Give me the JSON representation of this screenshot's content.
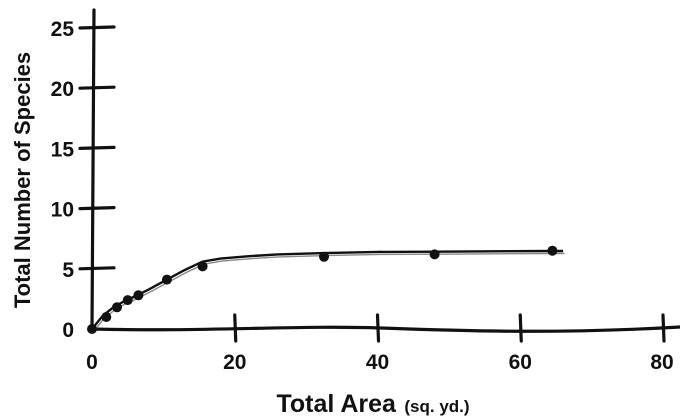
{
  "chart_data": {
    "type": "line",
    "title": "",
    "xlabel": "Total Area",
    "xlabel_unit": "(sq. yd.)",
    "ylabel": "Total Number of Species",
    "xlim": [
      0,
      80
    ],
    "ylim": [
      0,
      25
    ],
    "x_ticks": [
      0,
      20,
      40,
      60,
      80
    ],
    "y_ticks": [
      0,
      5,
      10,
      15,
      20,
      25
    ],
    "grid": false,
    "legend": "none",
    "colors": {
      "ink": "#111111",
      "shadow": "#888888"
    },
    "points": {
      "x": [
        0,
        2,
        3.5,
        5,
        6.5,
        10.5,
        15.5,
        32.5,
        48,
        64.5
      ],
      "y": [
        0,
        1,
        1.8,
        2.4,
        2.8,
        4.1,
        5.2,
        6.0,
        6.2,
        6.5
      ]
    },
    "curve": {
      "x": [
        0,
        1.5,
        3,
        4.5,
        6,
        8,
        10.5,
        13,
        15.5,
        18,
        22,
        26,
        32.5,
        40,
        48,
        56,
        64.5,
        66
      ],
      "y": [
        0,
        1.1,
        1.8,
        2.3,
        2.7,
        3.3,
        4.1,
        4.9,
        5.6,
        5.85,
        6.05,
        6.2,
        6.3,
        6.4,
        6.42,
        6.45,
        6.48,
        6.48
      ]
    }
  }
}
